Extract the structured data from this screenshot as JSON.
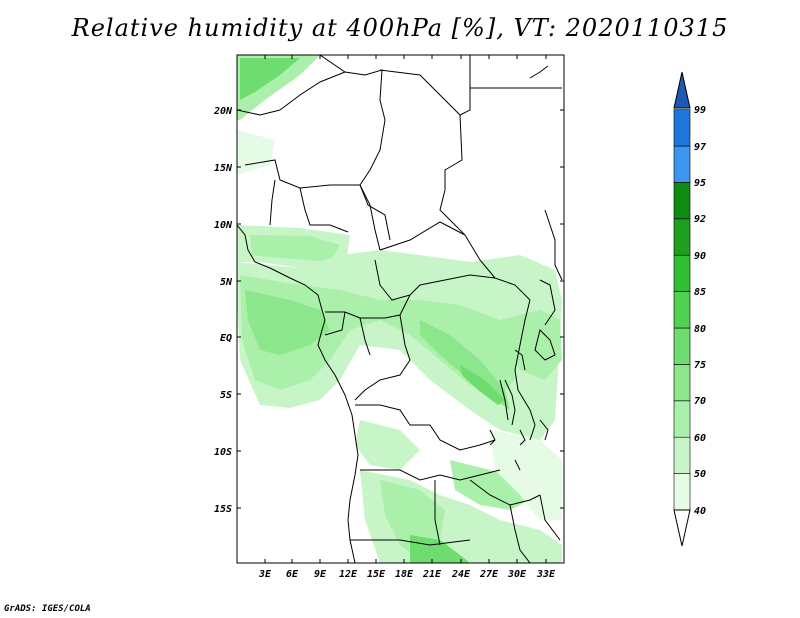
{
  "title": "Relative humidity at 400hPa [%], VT: 2020110315",
  "credit": "GrADS: IGES/COLA",
  "map": {
    "lat_labels": [
      "20N",
      "15N",
      "10N",
      "5N",
      "EQ",
      "5S",
      "10S",
      "15S"
    ],
    "lon_labels": [
      "3E",
      "6E",
      "9E",
      "12E",
      "15E",
      "18E",
      "21E",
      "24E",
      "27E",
      "30E",
      "33E"
    ]
  },
  "colorbar": {
    "levels": [
      "40",
      "50",
      "60",
      "70",
      "75",
      "80",
      "85",
      "90",
      "92",
      "95",
      "97",
      "99"
    ],
    "colors": [
      "#e6fbe6",
      "#c8f5c8",
      "#aaf0aa",
      "#8ce68c",
      "#6edc6e",
      "#50d250",
      "#32be32",
      "#1ea01e",
      "#0f8c0f",
      "#3c96f0",
      "#1e78dc",
      "#1e5ab4"
    ]
  }
}
